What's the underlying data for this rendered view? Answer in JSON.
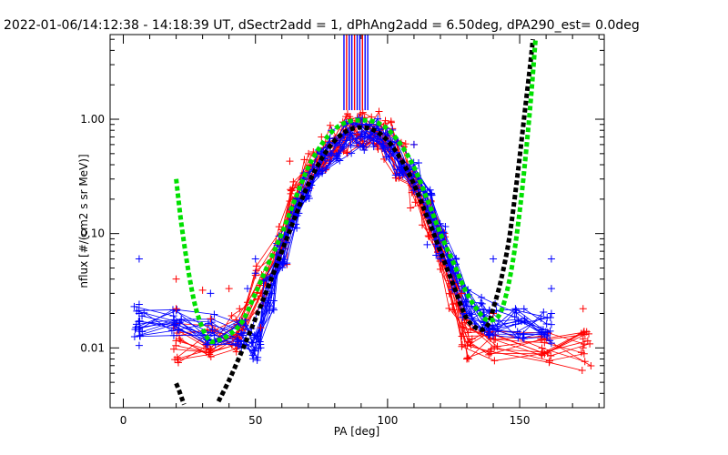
{
  "chart_data": {
    "type": "scatter",
    "title": "2022-01-06/14:12:38 - 14:18:39 UT, dSectr2add = 1, dPhAng2add = 6.50deg, dPA290_est=   0.0deg",
    "xlabel": "PA [deg]",
    "ylabel": "nflux [#/(cm2 s sr MeV)]",
    "xlim": [
      -5,
      182
    ],
    "ylim": [
      0.003,
      5.5
    ],
    "yscale": "log",
    "grid": false,
    "x_ticks": [
      0,
      50,
      100,
      150
    ],
    "x_tick_labels": [
      "0",
      "50",
      "100",
      "150"
    ],
    "y_ticks": [
      0.01,
      0.1,
      1.0
    ],
    "y_tick_labels": [
      "0.01",
      "0.10",
      "1.00"
    ],
    "colors": {
      "red": "#ff0000",
      "blue": "#0000ff",
      "black": "#000000",
      "green": "#00e000"
    },
    "vertical_markers": {
      "color": "#0000ff",
      "accent_color": "#ff0000",
      "x": [
        83.5,
        84.5,
        85.5,
        86.5,
        87.5,
        88.5,
        89.5,
        90.5,
        91.5,
        92.5
      ],
      "y_bottom": 1.2,
      "y_top": 5.5
    },
    "series": [
      {
        "color": "red",
        "style": "line-plus",
        "points": [
          [
            20,
            0.011
          ],
          [
            33,
            0.012
          ],
          [
            43,
            0.013
          ],
          [
            52,
            0.035
          ],
          [
            60,
            0.08
          ],
          [
            65,
            0.2
          ],
          [
            70,
            0.35
          ],
          [
            75,
            0.5
          ],
          [
            80,
            0.65
          ],
          [
            85,
            0.75
          ],
          [
            90,
            0.85
          ],
          [
            95,
            0.8
          ],
          [
            100,
            0.65
          ],
          [
            105,
            0.45
          ],
          [
            110,
            0.25
          ],
          [
            115,
            0.13
          ],
          [
            120,
            0.07
          ],
          [
            125,
            0.03
          ],
          [
            130,
            0.012
          ],
          [
            140,
            0.011
          ],
          [
            160,
            0.01
          ],
          [
            175,
            0.0095
          ]
        ],
        "variants": 14,
        "spread": 0.35
      },
      {
        "color": "blue",
        "style": "line-plus",
        "points": [
          [
            6,
            0.017
          ],
          [
            20,
            0.016
          ],
          [
            33,
            0.015
          ],
          [
            45,
            0.013
          ],
          [
            50,
            0.011
          ],
          [
            55,
            0.03
          ],
          [
            60,
            0.07
          ],
          [
            65,
            0.15
          ],
          [
            70,
            0.28
          ],
          [
            75,
            0.42
          ],
          [
            80,
            0.58
          ],
          [
            85,
            0.68
          ],
          [
            90,
            0.75
          ],
          [
            95,
            0.72
          ],
          [
            100,
            0.62
          ],
          [
            105,
            0.45
          ],
          [
            110,
            0.3
          ],
          [
            115,
            0.18
          ],
          [
            120,
            0.09
          ],
          [
            125,
            0.045
          ],
          [
            130,
            0.025
          ],
          [
            135,
            0.02
          ],
          [
            140,
            0.018
          ],
          [
            150,
            0.017
          ],
          [
            160,
            0.016
          ]
        ],
        "variants": 16,
        "spread": 0.3
      },
      {
        "color": "red",
        "style": "plus",
        "points": [
          [
            20,
            0.04
          ],
          [
            20,
            0.022
          ],
          [
            30,
            0.032
          ],
          [
            33,
            0.018
          ],
          [
            40,
            0.033
          ],
          [
            44,
            0.022
          ],
          [
            47,
            0.025
          ],
          [
            52,
            0.015
          ],
          [
            63,
            0.43
          ],
          [
            75,
            0.7
          ],
          [
            110,
            0.6
          ],
          [
            128,
            0.03
          ],
          [
            132,
            0.012
          ],
          [
            140,
            0.02
          ],
          [
            158,
            0.012
          ],
          [
            174,
            0.022
          ],
          [
            174,
            0.012
          ],
          [
            174,
            0.01
          ],
          [
            130,
            0.008
          ]
        ]
      },
      {
        "color": "blue",
        "style": "plus",
        "points": [
          [
            6,
            0.06
          ],
          [
            6,
            0.024
          ],
          [
            6,
            0.02
          ],
          [
            6,
            0.017
          ],
          [
            6,
            0.014
          ],
          [
            6,
            0.0105
          ],
          [
            33,
            0.03
          ],
          [
            47,
            0.033
          ],
          [
            50,
            0.045
          ],
          [
            50,
            0.06
          ],
          [
            52,
            0.01
          ],
          [
            110,
            0.6
          ],
          [
            115,
            0.08
          ],
          [
            120,
            0.06
          ],
          [
            130,
            0.02
          ],
          [
            140,
            0.06
          ],
          [
            162,
            0.06
          ],
          [
            162,
            0.033
          ],
          [
            162,
            0.02
          ],
          [
            162,
            0.016
          ],
          [
            162,
            0.011
          ]
        ]
      },
      {
        "color": "black",
        "style": "dashed-thick",
        "points": [
          [
            20,
            0.0049
          ],
          [
            21,
            0.0043
          ],
          [
            22,
            0.0037
          ],
          [
            23,
            0.0032
          ],
          [
            36,
            0.0034
          ],
          [
            40,
            0.0052
          ],
          [
            45,
            0.0095
          ],
          [
            50,
            0.018
          ],
          [
            55,
            0.035
          ],
          [
            60,
            0.07
          ],
          [
            65,
            0.14
          ],
          [
            70,
            0.27
          ],
          [
            75,
            0.45
          ],
          [
            80,
            0.65
          ],
          [
            85,
            0.8
          ],
          [
            90,
            0.85
          ],
          [
            95,
            0.8
          ],
          [
            100,
            0.65
          ],
          [
            105,
            0.45
          ],
          [
            110,
            0.27
          ],
          [
            115,
            0.14
          ],
          [
            120,
            0.07
          ],
          [
            125,
            0.035
          ],
          [
            130,
            0.018
          ],
          [
            135,
            0.0145
          ],
          [
            138,
            0.016
          ],
          [
            140,
            0.022
          ],
          [
            143,
            0.04
          ],
          [
            146,
            0.09
          ],
          [
            149,
            0.3
          ],
          [
            152,
            1.2
          ],
          [
            154,
            3.0
          ],
          [
            155,
            5.0
          ]
        ]
      },
      {
        "color": "green",
        "style": "dashed-thick",
        "points": [
          [
            20,
            0.3
          ],
          [
            22,
            0.12
          ],
          [
            25,
            0.042
          ],
          [
            28,
            0.02
          ],
          [
            32,
            0.012
          ],
          [
            35,
            0.0115
          ],
          [
            40,
            0.013
          ],
          [
            45,
            0.017
          ],
          [
            50,
            0.03
          ],
          [
            55,
            0.055
          ],
          [
            60,
            0.1
          ],
          [
            65,
            0.2
          ],
          [
            70,
            0.38
          ],
          [
            75,
            0.6
          ],
          [
            80,
            0.82
          ],
          [
            85,
            0.95
          ],
          [
            90,
            0.98
          ],
          [
            95,
            0.95
          ],
          [
            100,
            0.82
          ],
          [
            105,
            0.6
          ],
          [
            110,
            0.38
          ],
          [
            115,
            0.2
          ],
          [
            120,
            0.1
          ],
          [
            125,
            0.055
          ],
          [
            130,
            0.03
          ],
          [
            135,
            0.02
          ],
          [
            138,
            0.0175
          ],
          [
            142,
            0.019
          ],
          [
            145,
            0.03
          ],
          [
            148,
            0.07
          ],
          [
            151,
            0.25
          ],
          [
            154,
            1.3
          ],
          [
            156,
            5.0
          ]
        ]
      }
    ]
  }
}
